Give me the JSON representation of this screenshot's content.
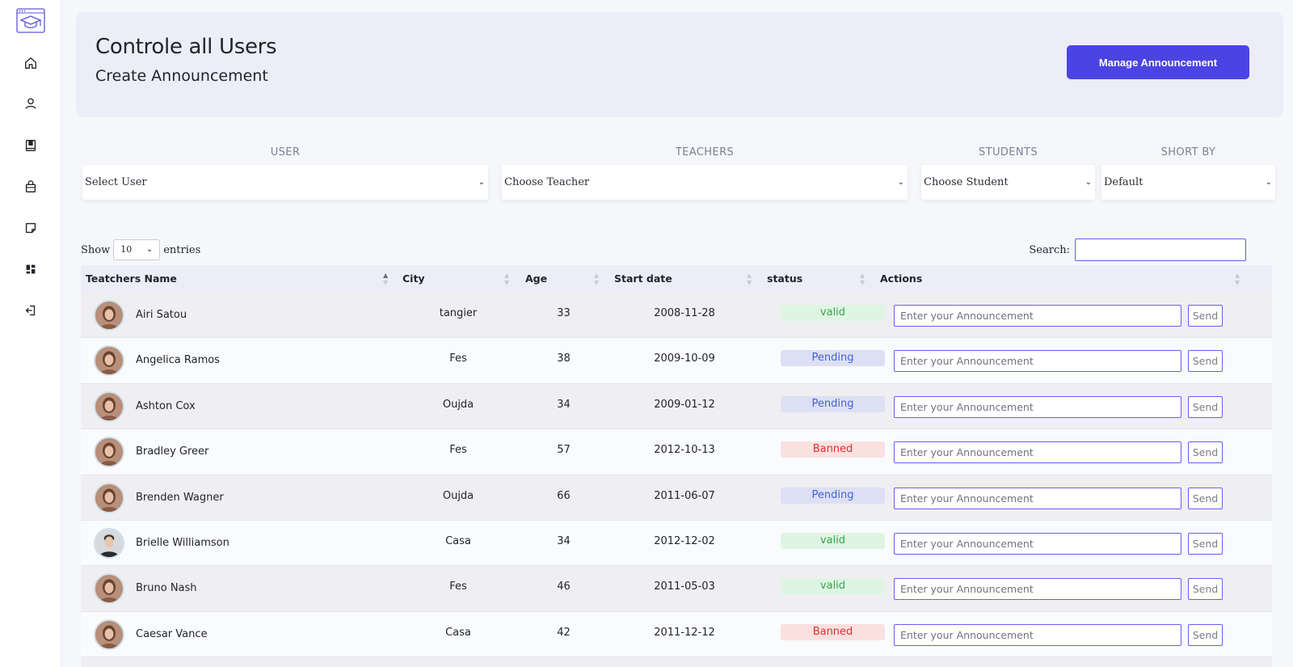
{
  "sidebar": {
    "logo_icon": "graduation-cap-icon",
    "items": [
      {
        "icon": "home-icon"
      },
      {
        "icon": "user-icon"
      },
      {
        "icon": "book-icon"
      },
      {
        "icon": "shopping-bag-icon"
      },
      {
        "icon": "note-icon"
      },
      {
        "icon": "dashboard-icon"
      },
      {
        "icon": "logout-icon"
      }
    ]
  },
  "header": {
    "title": "Controle all Users",
    "subtitle": "Create Announcement",
    "manage_button": "Manage Announcement"
  },
  "filters": {
    "user": {
      "label": "USER",
      "value": "Select User"
    },
    "teachers": {
      "label": "TEACHERS",
      "value": "Choose Teacher"
    },
    "students": {
      "label": "STUDENTS",
      "value": "Choose Student"
    },
    "sort": {
      "label": "SHORT BY",
      "value": "Default"
    }
  },
  "table_controls": {
    "show_label": "Show",
    "entries_value": "10",
    "entries_label": "entries",
    "search_label": "Search:",
    "search_value": ""
  },
  "table": {
    "columns": [
      "Teatchers Name",
      "City",
      "Age",
      "Start date",
      "status",
      "Actions"
    ],
    "announcement_placeholder": "Enter your Announcement",
    "send_label": "Send",
    "rows": [
      {
        "name": "Airi Satou",
        "city": "tangier",
        "age": "33",
        "start": "2008-11-28",
        "status": "valid"
      },
      {
        "name": "Angelica Ramos",
        "city": "Fes",
        "age": "38",
        "start": "2009-10-09",
        "status": "Pending"
      },
      {
        "name": "Ashton Cox",
        "city": "Oujda",
        "age": "34",
        "start": "2009-01-12",
        "status": "Pending"
      },
      {
        "name": "Bradley Greer",
        "city": "Fes",
        "age": "57",
        "start": "2012-10-13",
        "status": "Banned"
      },
      {
        "name": "Brenden Wagner",
        "city": "Oujda",
        "age": "66",
        "start": "2011-06-07",
        "status": "Pending"
      },
      {
        "name": "Brielle Williamson",
        "city": "Casa",
        "age": "34",
        "start": "2012-12-02",
        "status": "valid"
      },
      {
        "name": "Bruno Nash",
        "city": "Fes",
        "age": "46",
        "start": "2011-05-03",
        "status": "valid"
      },
      {
        "name": "Caesar Vance",
        "city": "Casa",
        "age": "42",
        "start": "2011-12-12",
        "status": "Banned"
      }
    ]
  },
  "colors": {
    "accent": "#4b44e3",
    "valid": "#37a54c",
    "pending": "#4460d8",
    "banned": "#e0312f"
  }
}
